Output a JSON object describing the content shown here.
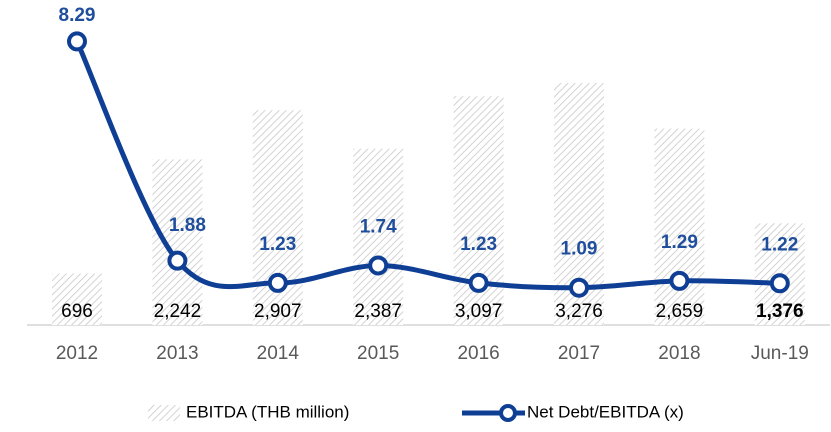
{
  "chart_data": {
    "type": "bar-line",
    "categories": [
      "2012",
      "2013",
      "2014",
      "2015",
      "2016",
      "2017",
      "2018",
      "Jun-19"
    ],
    "series": [
      {
        "name": "EBITDA (THB million)",
        "type": "bar",
        "color": "#bfbfbf",
        "values": [
          696,
          2242,
          2907,
          2387,
          3097,
          3276,
          2659,
          1376
        ],
        "value_labels": [
          "696",
          "2,242",
          "2,907",
          "2,387",
          "3,097",
          "3,276",
          "2,659",
          "1,376"
        ]
      },
      {
        "name": "Net Debt/EBITDA (x)",
        "type": "line",
        "axis": "y2",
        "color": "#0f3f95",
        "values": [
          8.29,
          1.88,
          1.23,
          1.74,
          1.23,
          1.09,
          1.29,
          1.22
        ]
      }
    ],
    "ylim": [
      0,
      4400
    ],
    "y2lim": [
      0,
      9.5
    ]
  }
}
